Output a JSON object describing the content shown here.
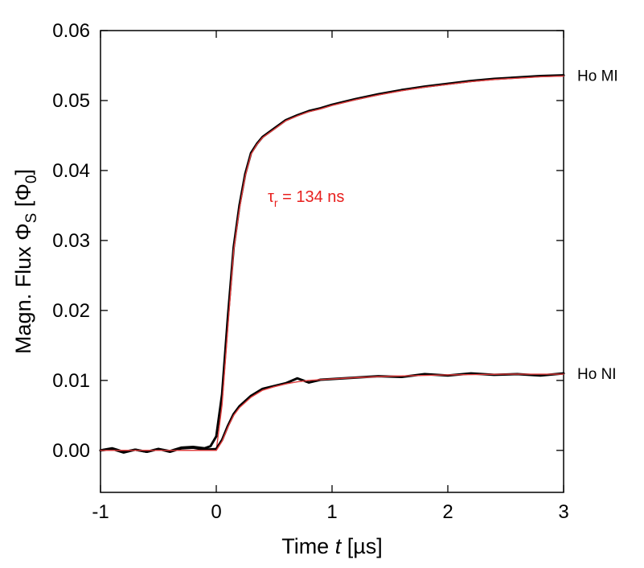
{
  "chart_data": {
    "type": "line",
    "xlim": [
      -1,
      3
    ],
    "ylim": [
      -0.006,
      0.06
    ],
    "x_ticks": [
      -1,
      0,
      1,
      2,
      3
    ],
    "x_tick_labels": [
      "-1",
      "0",
      "1",
      "2",
      "3"
    ],
    "y_ticks": [
      0.0,
      0.01,
      0.02,
      0.03,
      0.04,
      0.05,
      0.06
    ],
    "y_tick_labels": [
      "0.00",
      "0.01",
      "0.02",
      "0.03",
      "0.04",
      "0.05",
      "0.06"
    ],
    "xlabel": {
      "prefix": "Time ",
      "var": "t",
      "suffix": " [µs]"
    },
    "ylabel": {
      "main": "Magn. Flux Φ",
      "sub1": "S",
      "mid": " [Φ",
      "sub2": "0",
      "end": "]"
    },
    "annotation": {
      "symbol": "τ",
      "sub": "r",
      "text": " = 134 ns",
      "color": "#e8201e"
    },
    "grid": false,
    "series": [
      {
        "name": "Ho MI",
        "kind": "measured",
        "color": "#000000",
        "x": [
          -1,
          -0.9,
          -0.8,
          -0.7,
          -0.6,
          -0.5,
          -0.4,
          -0.3,
          -0.2,
          -0.1,
          -0.05,
          0,
          0.05,
          0.1,
          0.15,
          0.2,
          0.25,
          0.3,
          0.35,
          0.4,
          0.5,
          0.6,
          0.7,
          0.8,
          0.9,
          1.0,
          1.2,
          1.4,
          1.6,
          1.8,
          2.0,
          2.2,
          2.4,
          2.6,
          2.8,
          3.0
        ],
        "y": [
          0.0,
          0.0003,
          -0.0002,
          0.0001,
          -0.0002,
          0.0002,
          -0.0001,
          0.0004,
          0.0005,
          0.0003,
          0.0006,
          0.002,
          0.008,
          0.019,
          0.029,
          0.035,
          0.0395,
          0.0425,
          0.0438,
          0.0448,
          0.046,
          0.0472,
          0.0479,
          0.0485,
          0.0489,
          0.0494,
          0.0502,
          0.0509,
          0.0515,
          0.052,
          0.0524,
          0.0528,
          0.0531,
          0.0533,
          0.0535,
          0.0536
        ]
      },
      {
        "name": "",
        "kind": "fit",
        "color": "#e03c3c",
        "x": [
          -1,
          -0.5,
          0,
          0.05,
          0.1,
          0.15,
          0.2,
          0.25,
          0.3,
          0.35,
          0.4,
          0.5,
          0.6,
          0.7,
          0.8,
          0.9,
          1.0,
          1.2,
          1.4,
          1.6,
          1.8,
          2.0,
          2.2,
          2.4,
          2.6,
          2.8,
          3.0
        ],
        "y": [
          0.0,
          0.0,
          0.0,
          0.0065,
          0.0175,
          0.0285,
          0.0345,
          0.0392,
          0.0423,
          0.0437,
          0.0447,
          0.0459,
          0.0471,
          0.0478,
          0.0484,
          0.0488,
          0.0493,
          0.0501,
          0.0508,
          0.0514,
          0.0519,
          0.0523,
          0.0527,
          0.053,
          0.0532,
          0.0534,
          0.0535
        ]
      },
      {
        "name": "Ho NI",
        "kind": "measured",
        "color": "#000000",
        "x": [
          -1,
          -0.9,
          -0.8,
          -0.7,
          -0.6,
          -0.5,
          -0.4,
          -0.3,
          -0.2,
          -0.1,
          0,
          0.05,
          0.1,
          0.15,
          0.2,
          0.3,
          0.4,
          0.5,
          0.6,
          0.7,
          0.8,
          0.9,
          1.0,
          1.2,
          1.4,
          1.6,
          1.8,
          2.0,
          2.2,
          2.4,
          2.6,
          2.8,
          3.0
        ],
        "y": [
          0.0,
          0.0002,
          -0.0003,
          0.0001,
          -0.0002,
          0.0002,
          -0.0002,
          0.0003,
          0.0004,
          0.0001,
          0.0002,
          0.0015,
          0.0035,
          0.0052,
          0.0063,
          0.0078,
          0.0088,
          0.0092,
          0.0096,
          0.0103,
          0.0097,
          0.0101,
          0.0102,
          0.0104,
          0.0106,
          0.0105,
          0.0109,
          0.0107,
          0.011,
          0.0108,
          0.0109,
          0.0107,
          0.011
        ]
      },
      {
        "name": "",
        "kind": "fit",
        "color": "#e03c3c",
        "x": [
          -1,
          -0.5,
          0,
          0.05,
          0.1,
          0.15,
          0.2,
          0.3,
          0.4,
          0.5,
          0.6,
          0.7,
          0.8,
          1.0,
          1.2,
          1.5,
          2.0,
          2.5,
          3.0
        ],
        "y": [
          0.0,
          0.0,
          0.0,
          0.0013,
          0.0033,
          0.005,
          0.0061,
          0.0076,
          0.0086,
          0.0091,
          0.0095,
          0.0098,
          0.01,
          0.0102,
          0.0104,
          0.0106,
          0.0108,
          0.0109,
          0.0109
        ]
      }
    ]
  }
}
